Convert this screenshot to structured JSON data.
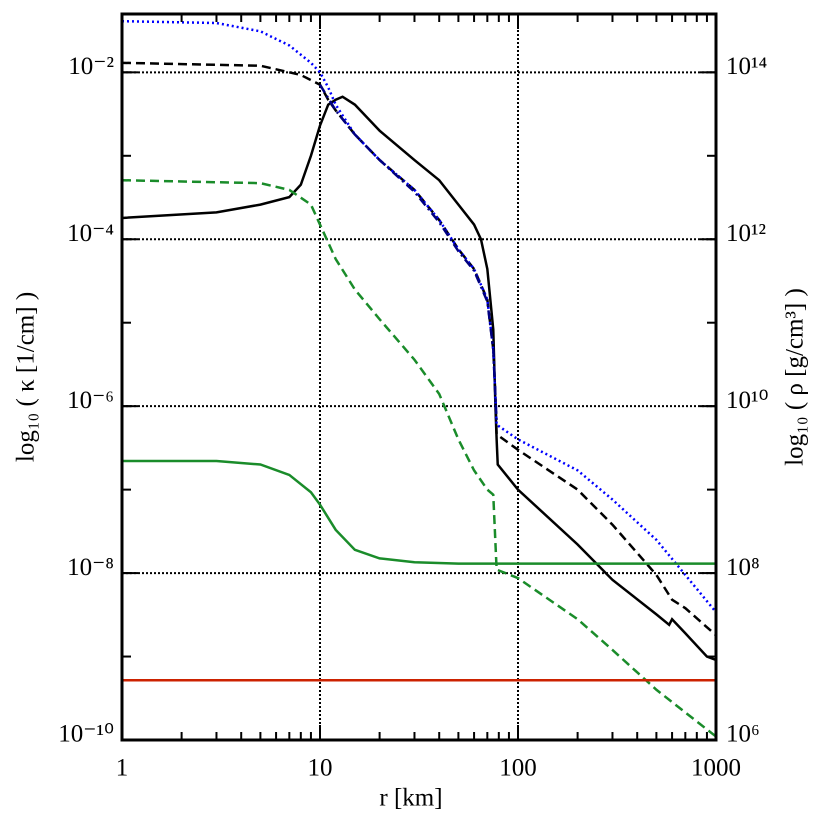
{
  "chart_data": {
    "type": "line",
    "xlabel": "r [km]",
    "ylabel": "log₁₀ ( κ [1/cm] )",
    "y2label": "log₁₀ ( ρ [g/cm³] )",
    "xscale": "log",
    "yscale": "log",
    "grid": true,
    "xlim": [
      1,
      1000
    ],
    "xticks": [
      1,
      10,
      100,
      1000
    ],
    "ylim": [
      1e-10,
      0.05
    ],
    "yticks": [
      {
        "value": 1e-10,
        "label": "10⁻¹⁰"
      },
      {
        "value": 1e-08,
        "label": "10⁻⁸"
      },
      {
        "value": 1e-06,
        "label": "10⁻⁶"
      },
      {
        "value": 0.0001,
        "label": "10⁻⁴"
      },
      {
        "value": 0.01,
        "label": "10⁻²"
      }
    ],
    "y2lim": [
      1000000.0,
      500000000000000.0
    ],
    "y2ticks": [
      {
        "value": 1000000.0,
        "label": "10⁶"
      },
      {
        "value": 100000000.0,
        "label": "10⁸"
      },
      {
        "value": 10000000000.0,
        "label": "10¹⁰"
      },
      {
        "value": 1000000000000.0,
        "label": "10¹²"
      },
      {
        "value": 100000000000000.0,
        "label": "10¹⁴"
      }
    ],
    "series": [
      {
        "color": "#000000",
        "style": "solid",
        "x": [
          1,
          3,
          5,
          7,
          8,
          9,
          10,
          11,
          12,
          13,
          15,
          20,
          30,
          40,
          50,
          60,
          65,
          70,
          75,
          77,
          78,
          79,
          100,
          200,
          300,
          500,
          580,
          600,
          700,
          900,
          1000
        ],
        "values": [
          0.00018,
          0.00021,
          0.00026,
          0.00032,
          0.00045,
          0.001,
          0.0023,
          0.0041,
          0.0047,
          0.0051,
          0.0041,
          0.002,
          0.00089,
          0.00051,
          0.00026,
          0.00015,
          0.0001,
          4.4e-05,
          8.3e-06,
          9.1e-07,
          4e-07,
          2e-07,
          1e-07,
          2.2e-08,
          8.3e-09,
          3.2e-09,
          2.4e-09,
          2.8e-09,
          1.9e-09,
          1e-09,
          9.1e-10
        ]
      },
      {
        "color": "#000000",
        "style": "dashed",
        "x": [
          1,
          5,
          8,
          10,
          11,
          12,
          15,
          20,
          30,
          40,
          50,
          60,
          70,
          75,
          77,
          78,
          100,
          200,
          300,
          500,
          600,
          700,
          1000
        ],
        "values": [
          0.013,
          0.012,
          0.0093,
          0.0071,
          0.0047,
          0.0035,
          0.0018,
          0.00089,
          0.00039,
          0.00017,
          7.6e-05,
          4.4e-05,
          1.9e-05,
          4.8e-06,
          1.2e-06,
          4.6e-07,
          3e-07,
          1e-07,
          3.8e-08,
          9.5e-09,
          4.8e-09,
          3.8e-09,
          1.8e-09
        ]
      },
      {
        "color": "#0000ff",
        "style": "dotted",
        "x": [
          1,
          3,
          5,
          7,
          9,
          10,
          11,
          12,
          15,
          20,
          30,
          40,
          50,
          60,
          70,
          75,
          77,
          78,
          100,
          200,
          300,
          500,
          700,
          1000
        ],
        "values": [
          0.041,
          0.039,
          0.031,
          0.021,
          0.013,
          0.01,
          0.0066,
          0.0041,
          0.0018,
          0.00089,
          0.00039,
          0.00017,
          7.6e-05,
          4.4e-05,
          1.9e-05,
          4.8e-06,
          1.2e-06,
          6e-07,
          4e-07,
          1.7e-07,
          7.6e-08,
          2.5e-08,
          9.5e-09,
          3.4e-09
        ]
      },
      {
        "color": "#000080",
        "style": "dashdot",
        "x": [
          10,
          12,
          15,
          20,
          30,
          40,
          50,
          60,
          70,
          75,
          78
        ],
        "values": [
          0.0071,
          0.0035,
          0.0018,
          0.00089,
          0.00037,
          0.00016,
          7.2e-05,
          4.2e-05,
          1.8e-05,
          4.8e-06,
          6.5e-07
        ]
      },
      {
        "color": "#1a8c2a",
        "style": "dashed",
        "x": [
          1,
          5,
          7,
          9,
          10,
          12,
          15,
          20,
          30,
          40,
          50,
          60,
          70,
          75,
          78,
          100,
          200,
          300,
          500,
          1000
        ],
        "values": [
          0.00051,
          0.00047,
          0.00039,
          0.00026,
          0.00015,
          5.8e-05,
          2.5e-05,
          1.1e-05,
          3.6e-06,
          1.4e-06,
          4e-07,
          1.7e-07,
          1e-07,
          8.7e-08,
          1.1e-08,
          8.7e-09,
          2.8e-09,
          1.2e-09,
          4e-10,
          1.1e-10
        ]
      },
      {
        "color": "#1a8c2a",
        "style": "solid",
        "x": [
          1,
          3,
          5,
          7,
          9,
          10,
          12,
          15,
          20,
          30,
          50,
          1000
        ],
        "values": [
          2.2e-07,
          2.2e-07,
          2e-07,
          1.5e-07,
          9.3e-08,
          6.6e-08,
          3.3e-08,
          1.9e-08,
          1.5e-08,
          1.35e-08,
          1.3e-08,
          1.3e-08
        ]
      },
      {
        "color": "#cc2200",
        "style": "solid",
        "x": [
          1,
          1000
        ],
        "values": [
          5.2e-10,
          5.2e-10
        ]
      }
    ]
  }
}
